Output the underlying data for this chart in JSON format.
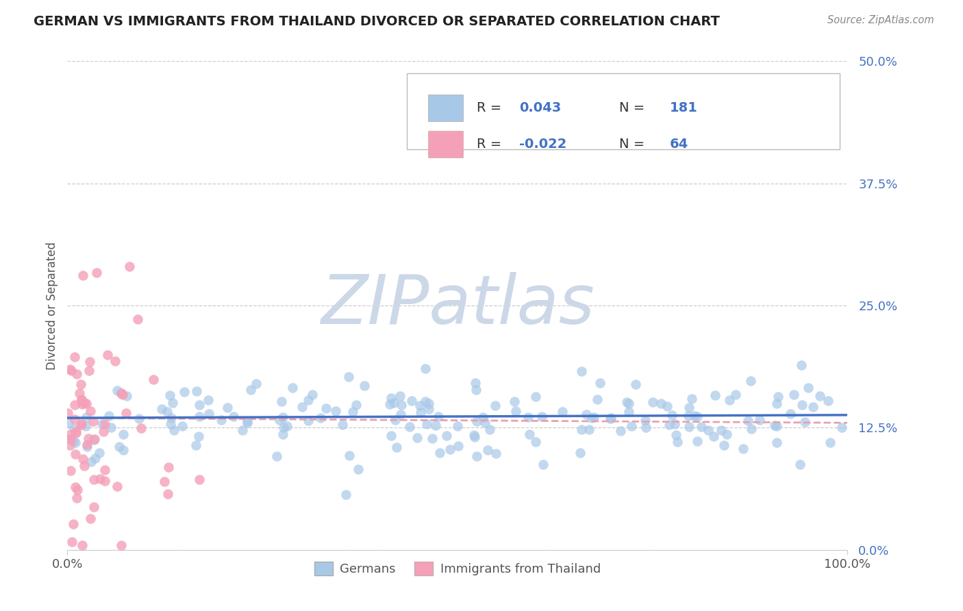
{
  "title": "GERMAN VS IMMIGRANTS FROM THAILAND DIVORCED OR SEPARATED CORRELATION CHART",
  "source": "Source: ZipAtlas.com",
  "ylabel": "Divorced or Separated",
  "xlabel": "",
  "legend_bottom": [
    "Germans",
    "Immigrants from Thailand"
  ],
  "R_german": 0.043,
  "N_german": 181,
  "R_thailand": -0.022,
  "N_thailand": 64,
  "xlim": [
    0.0,
    1.0
  ],
  "ylim": [
    0.0,
    0.5
  ],
  "yticks": [
    0.0,
    0.125,
    0.25,
    0.375,
    0.5
  ],
  "ytick_labels": [
    "0.0%",
    "12.5%",
    "25.0%",
    "37.5%",
    "50.0%"
  ],
  "xticks": [
    0.0,
    1.0
  ],
  "xtick_labels": [
    "0.0%",
    "100.0%"
  ],
  "color_german": "#a8c8e8",
  "color_thailand": "#f4a0b8",
  "line_color_german": "#4472c4",
  "line_color_thailand": "#e8a0b4",
  "bg_color": "#ffffff",
  "watermark": "ZIPatlas",
  "watermark_color": "#ccd8e8",
  "grid_color": "#cccccc",
  "figsize": [
    14.06,
    8.92
  ],
  "dpi": 100,
  "trend_y_start_german": 0.135,
  "trend_y_end_german": 0.138,
  "trend_y_start_thailand": 0.135,
  "trend_y_end_thailand": 0.13
}
